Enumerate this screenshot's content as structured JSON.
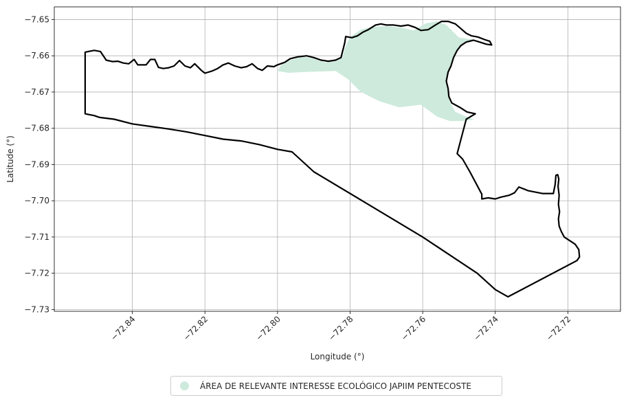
{
  "chart_data": {
    "type": "map",
    "xlabel": "Longitude (°)",
    "ylabel": "Latitude (°)",
    "xlim": [
      -72.8615,
      -72.7055
    ],
    "ylim": [
      -7.7305,
      -7.6465
    ],
    "xticks": [
      -72.84,
      -72.82,
      -72.8,
      -72.78,
      -72.76,
      -72.74,
      -72.72
    ],
    "xtick_labels": [
      "−72.84",
      "−72.82",
      "−72.80",
      "−72.78",
      "−72.76",
      "−72.74",
      "−72.72"
    ],
    "yticks": [
      -7.65,
      -7.66,
      -7.67,
      -7.68,
      -7.69,
      -7.7,
      -7.71,
      -7.72,
      -7.73
    ],
    "ytick_labels": [
      "−7.65",
      "−7.66",
      "−7.67",
      "−7.68",
      "−7.69",
      "−7.70",
      "−7.71",
      "−7.72",
      "−7.73"
    ],
    "grid": true,
    "legend_position": "bottom-center",
    "outline_color": "#000000",
    "ecological_area": {
      "name": "ÁREA DE RELEVANTE INTERESSE ECOLÓGICO JAPIIM PENTECOSTE",
      "color": "#cdeadc",
      "polygon": [
        [
          -72.8,
          -7.6642
        ],
        [
          -72.797,
          -7.6647
        ],
        [
          -72.793,
          -7.6645
        ],
        [
          -72.784,
          -7.6642
        ],
        [
          -72.7805,
          -7.6665
        ],
        [
          -72.777,
          -7.67
        ],
        [
          -72.772,
          -7.6725
        ],
        [
          -72.7665,
          -7.6742
        ],
        [
          -72.7605,
          -7.6735
        ],
        [
          -72.756,
          -7.6768
        ],
        [
          -72.7525,
          -7.678
        ],
        [
          -72.749,
          -7.678
        ],
        [
          -72.7458,
          -7.6776
        ],
        [
          -72.748,
          -7.6768
        ],
        [
          -72.751,
          -7.6755
        ],
        [
          -72.7525,
          -7.6728
        ],
        [
          -72.753,
          -7.6695
        ],
        [
          -72.7535,
          -7.6665
        ],
        [
          -72.7528,
          -7.664
        ],
        [
          -72.752,
          -7.6625
        ],
        [
          -72.7515,
          -7.6605
        ],
        [
          -72.7508,
          -7.6585
        ],
        [
          -72.7495,
          -7.657
        ],
        [
          -72.748,
          -7.6562
        ],
        [
          -72.746,
          -7.6555
        ],
        [
          -72.75,
          -7.655
        ],
        [
          -72.752,
          -7.653
        ],
        [
          -72.7535,
          -7.6515
        ],
        [
          -72.756,
          -7.6505
        ],
        [
          -72.759,
          -7.651
        ],
        [
          -72.7625,
          -7.653
        ],
        [
          -72.766,
          -7.6522
        ],
        [
          -72.77,
          -7.6518
        ],
        [
          -72.774,
          -7.652
        ],
        [
          -72.777,
          -7.6528
        ],
        [
          -72.78,
          -7.6548
        ],
        [
          -72.7815,
          -7.658
        ],
        [
          -72.782,
          -7.6605
        ],
        [
          -72.784,
          -7.6615
        ],
        [
          -72.787,
          -7.6618
        ],
        [
          -72.79,
          -7.6608
        ],
        [
          -72.793,
          -7.6602
        ],
        [
          -72.7965,
          -7.6612
        ],
        [
          -72.799,
          -7.6625
        ]
      ]
    },
    "boundary": [
      [
        -72.853,
        -7.659
      ],
      [
        -72.8505,
        -7.6585
      ],
      [
        -72.8488,
        -7.6588
      ],
      [
        -72.8478,
        -7.6603
      ],
      [
        -72.8472,
        -7.6612
      ],
      [
        -72.8455,
        -7.6616
      ],
      [
        -72.844,
        -7.6615
      ],
      [
        -72.8425,
        -7.662
      ],
      [
        -72.841,
        -7.6622
      ],
      [
        -72.8395,
        -7.661
      ],
      [
        -72.8385,
        -7.6625
      ],
      [
        -72.8362,
        -7.6625
      ],
      [
        -72.835,
        -7.661
      ],
      [
        -72.8338,
        -7.661
      ],
      [
        -72.8328,
        -7.6632
      ],
      [
        -72.8315,
        -7.6635
      ],
      [
        -72.83,
        -7.6633
      ],
      [
        -72.8285,
        -7.6628
      ],
      [
        -72.827,
        -7.6613
      ],
      [
        -72.8255,
        -7.6628
      ],
      [
        -72.824,
        -7.6633
      ],
      [
        -72.8228,
        -7.6622
      ],
      [
        -72.821,
        -7.664
      ],
      [
        -72.82,
        -7.6648
      ],
      [
        -72.818,
        -7.6642
      ],
      [
        -72.8165,
        -7.6635
      ],
      [
        -72.815,
        -7.6625
      ],
      [
        -72.8135,
        -7.662
      ],
      [
        -72.8118,
        -7.6628
      ],
      [
        -72.81,
        -7.6633
      ],
      [
        -72.8085,
        -7.663
      ],
      [
        -72.807,
        -7.6622
      ],
      [
        -72.8055,
        -7.6635
      ],
      [
        -72.8042,
        -7.664
      ],
      [
        -72.8028,
        -7.6628
      ],
      [
        -72.801,
        -7.663
      ],
      [
        -72.8,
        -7.6625
      ],
      [
        -72.798,
        -7.6618
      ],
      [
        -72.7965,
        -7.6608
      ],
      [
        -72.7945,
        -7.6603
      ],
      [
        -72.792,
        -7.66
      ],
      [
        -72.79,
        -7.6605
      ],
      [
        -72.788,
        -7.6612
      ],
      [
        -72.786,
        -7.6615
      ],
      [
        -72.784,
        -7.6612
      ],
      [
        -72.7825,
        -7.6605
      ],
      [
        -72.782,
        -7.6585
      ],
      [
        -72.7815,
        -7.6565
      ],
      [
        -72.7812,
        -7.6547
      ],
      [
        -72.7795,
        -7.655
      ],
      [
        -72.778,
        -7.6545
      ],
      [
        -72.7765,
        -7.6535
      ],
      [
        -72.775,
        -7.6528
      ],
      [
        -72.773,
        -7.6515
      ],
      [
        -72.7715,
        -7.6512
      ],
      [
        -72.77,
        -7.6515
      ],
      [
        -72.768,
        -7.6515
      ],
      [
        -72.766,
        -7.6518
      ],
      [
        -72.764,
        -7.6515
      ],
      [
        -72.762,
        -7.6522
      ],
      [
        -72.7605,
        -7.653
      ],
      [
        -72.7585,
        -7.6528
      ],
      [
        -72.7565,
        -7.6515
      ],
      [
        -72.7548,
        -7.6505
      ],
      [
        -72.753,
        -7.6505
      ],
      [
        -72.751,
        -7.6512
      ],
      [
        -72.7495,
        -7.6525
      ],
      [
        -72.748,
        -7.6538
      ],
      [
        -72.7465,
        -7.6545
      ],
      [
        -72.7448,
        -7.6548
      ],
      [
        -72.743,
        -7.6555
      ],
      [
        -72.7415,
        -7.656
      ],
      [
        -72.741,
        -7.657
      ],
      [
        -72.7425,
        -7.6568
      ],
      [
        -72.744,
        -7.6563
      ],
      [
        -72.746,
        -7.6557
      ],
      [
        -72.748,
        -7.6562
      ],
      [
        -72.7495,
        -7.6572
      ],
      [
        -72.7505,
        -7.6585
      ],
      [
        -72.7515,
        -7.6605
      ],
      [
        -72.7522,
        -7.6628
      ],
      [
        -72.753,
        -7.6645
      ],
      [
        -72.7535,
        -7.667
      ],
      [
        -72.753,
        -7.669
      ],
      [
        -72.7528,
        -7.6712
      ],
      [
        -72.752,
        -7.673
      ],
      [
        -72.7498,
        -7.6742
      ],
      [
        -72.7478,
        -7.6755
      ],
      [
        -72.7455,
        -7.676
      ],
      [
        -72.748,
        -7.6775
      ],
      [
        -72.7505,
        -7.687
      ],
      [
        -72.749,
        -7.6885
      ],
      [
        -72.747,
        -7.692
      ],
      [
        -72.7437,
        -7.6982
      ],
      [
        -72.7437,
        -7.6995
      ],
      [
        -72.742,
        -7.6992
      ],
      [
        -72.74,
        -7.6995
      ],
      [
        -72.7385,
        -7.699
      ],
      [
        -72.7362,
        -7.6985
      ],
      [
        -72.7347,
        -7.6978
      ],
      [
        -72.7335,
        -7.6962
      ],
      [
        -72.731,
        -7.6972
      ],
      [
        -72.727,
        -7.698
      ],
      [
        -72.724,
        -7.698
      ],
      [
        -72.7235,
        -7.6955
      ],
      [
        -72.7233,
        -7.693
      ],
      [
        -72.7228,
        -7.6928
      ],
      [
        -72.7225,
        -7.694
      ],
      [
        -72.7227,
        -7.696
      ],
      [
        -72.7224,
        -7.6985
      ],
      [
        -72.7226,
        -7.701
      ],
      [
        -72.7223,
        -7.703
      ],
      [
        -72.7226,
        -7.705
      ],
      [
        -72.7224,
        -7.707
      ],
      [
        -72.7218,
        -7.7085
      ],
      [
        -72.721,
        -7.71
      ],
      [
        -72.7195,
        -7.711
      ],
      [
        -72.718,
        -7.712
      ],
      [
        -72.717,
        -7.7135
      ],
      [
        -72.7168,
        -7.7155
      ],
      [
        -72.7175,
        -7.7165
      ],
      [
        -72.7365,
        -7.7265
      ],
      [
        -72.74,
        -7.7245
      ],
      [
        -72.745,
        -7.72
      ],
      [
        -72.76,
        -7.71
      ],
      [
        -72.775,
        -7.701
      ],
      [
        -72.79,
        -7.692
      ],
      [
        -72.796,
        -7.6865
      ],
      [
        -72.8,
        -7.6858
      ],
      [
        -72.805,
        -7.6845
      ],
      [
        -72.81,
        -7.6835
      ],
      [
        -72.815,
        -7.683
      ],
      [
        -72.82,
        -7.682
      ],
      [
        -72.825,
        -7.681
      ],
      [
        -72.83,
        -7.6802
      ],
      [
        -72.835,
        -7.6795
      ],
      [
        -72.84,
        -7.6788
      ],
      [
        -72.845,
        -7.6775
      ],
      [
        -72.849,
        -7.677
      ],
      [
        -72.8505,
        -7.6765
      ],
      [
        -72.853,
        -7.676
      ],
      [
        -72.853,
        -7.669
      ],
      [
        -72.853,
        -7.663
      ],
      [
        -72.853,
        -7.659
      ]
    ]
  },
  "legend": {
    "label": "ÁREA DE RELEVANTE INTERESSE ECOLÓGICO JAPIIM PENTECOSTE",
    "swatch_color": "#cdeadc"
  }
}
